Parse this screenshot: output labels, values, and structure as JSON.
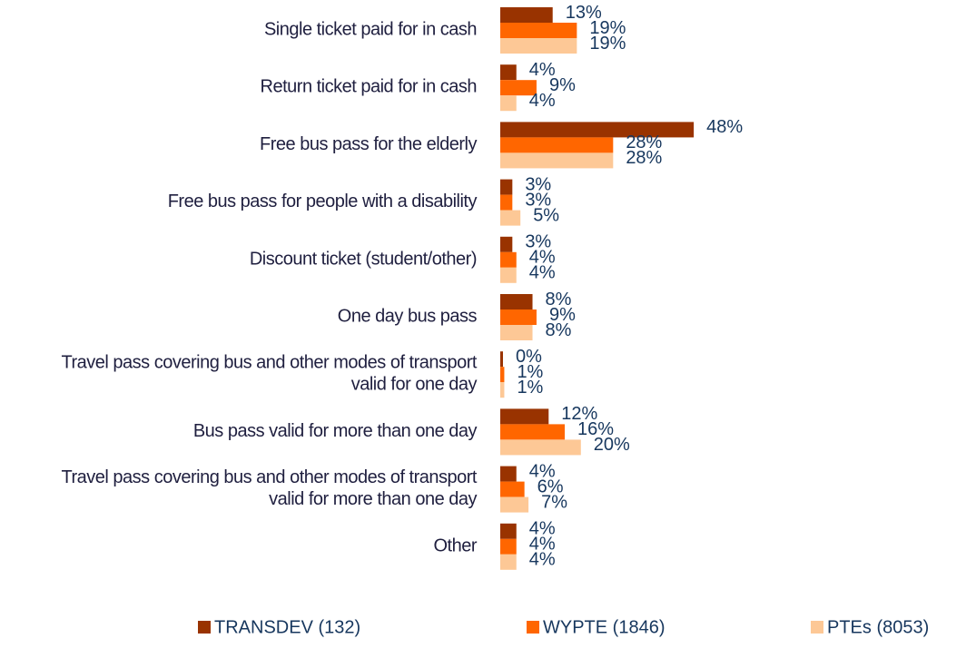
{
  "chart_data": {
    "type": "bar",
    "orientation": "horizontal",
    "categories": [
      "Single ticket paid for in cash",
      "Return ticket paid for in cash",
      "Free bus pass for the elderly",
      "Free bus pass for people with a disability",
      "Discount ticket (student/other)",
      "One day bus pass",
      "Travel pass covering bus and other modes of transport valid for one day",
      "Bus pass valid for more than one day",
      "Travel pass covering bus and other modes of transport valid for more than one day",
      "Other"
    ],
    "series": [
      {
        "name": "TRANSDEV (132)",
        "color": "#993300",
        "values": [
          13,
          4,
          48,
          3,
          3,
          8,
          0,
          12,
          4,
          4
        ],
        "value_labels": [
          "13%",
          "4%",
          "48%",
          "3%",
          "3%",
          "8%",
          "0%",
          "12%",
          "4%",
          "4%"
        ]
      },
      {
        "name": "WYPTE (1846)",
        "color": "#ff6600",
        "values": [
          19,
          9,
          28,
          3,
          4,
          9,
          1,
          16,
          6,
          4
        ],
        "value_labels": [
          "19%",
          "9%",
          "28%",
          "3%",
          "4%",
          "9%",
          "1%",
          "16%",
          "6%",
          "4%"
        ]
      },
      {
        "name": "PTEs (8053)",
        "color": "#fdc896",
        "values": [
          19,
          4,
          28,
          5,
          4,
          8,
          1,
          20,
          7,
          4
        ],
        "value_labels": [
          "19%",
          "4%",
          "28%",
          "5%",
          "4%",
          "8%",
          "1%",
          "20%",
          "7%",
          "4%"
        ]
      }
    ],
    "legend": "bottom"
  }
}
